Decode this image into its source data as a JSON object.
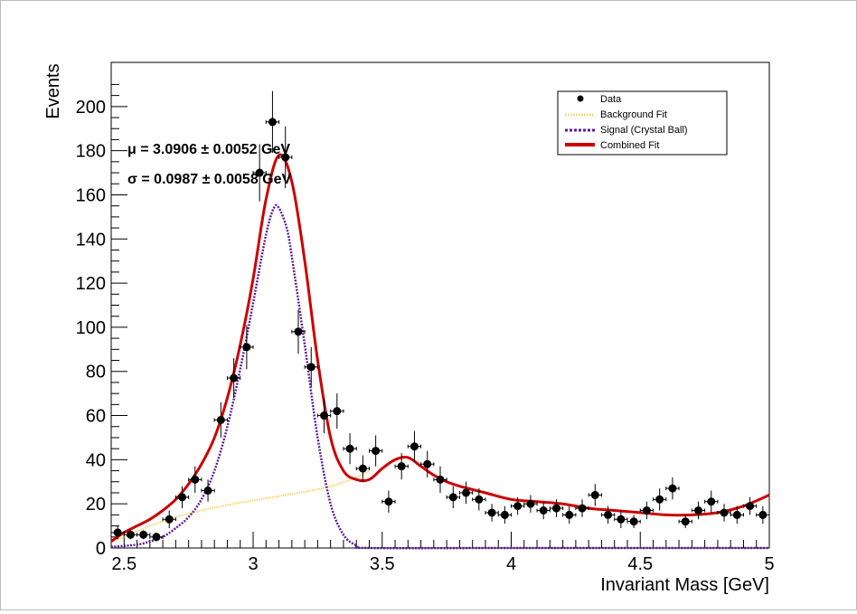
{
  "chart_data": {
    "type": "scatter",
    "xlabel": "Invariant Mass [GeV]",
    "ylabel": "Events",
    "xlim": [
      2.45,
      5.0
    ],
    "ylim": [
      0,
      220
    ],
    "x_ticks": [
      "2.5",
      "3",
      "3.5",
      "4",
      "4.5",
      "5"
    ],
    "y_ticks": [
      "0",
      "20",
      "40",
      "60",
      "80",
      "100",
      "120",
      "140",
      "160",
      "180",
      "200"
    ],
    "annotations": {
      "mu": "μ = 3.0906 ± 0.0052 GeV",
      "sigma": "σ = 0.0987 ± 0.0058 GeV"
    },
    "legend": {
      "placement": "top-right",
      "entries": [
        "Data",
        "Background Fit",
        "Signal (Crystal Ball)",
        "Combined Fit"
      ]
    },
    "colors": {
      "data": "#000000",
      "background": "#f5d76e",
      "signal": "#5b1a9b",
      "combined": "#cc0000"
    },
    "x_error": 0.025,
    "series": [
      {
        "name": "Data",
        "kind": "points",
        "x": [
          2.475,
          2.525,
          2.575,
          2.625,
          2.675,
          2.725,
          2.775,
          2.825,
          2.875,
          2.925,
          2.975,
          3.025,
          3.075,
          3.125,
          3.175,
          3.225,
          3.275,
          3.325,
          3.375,
          3.425,
          3.475,
          3.525,
          3.575,
          3.625,
          3.675,
          3.725,
          3.775,
          3.825,
          3.875,
          3.925,
          3.975,
          4.025,
          4.075,
          4.125,
          4.175,
          4.225,
          4.275,
          4.325,
          4.375,
          4.425,
          4.475,
          4.525,
          4.575,
          4.625,
          4.675,
          4.725,
          4.775,
          4.825,
          4.875,
          4.925,
          4.975
        ],
        "y": [
          7,
          6,
          6,
          5,
          13,
          23,
          31,
          26,
          58,
          77,
          91,
          170,
          193,
          177,
          98,
          82,
          60,
          62,
          45,
          36,
          44,
          21,
          37,
          46,
          38,
          31,
          23,
          25,
          22,
          16,
          15,
          19,
          20,
          17,
          18,
          15,
          18,
          24,
          15,
          13,
          12,
          17,
          22,
          27,
          12,
          17,
          21,
          16,
          15,
          19,
          15
        ],
        "err": [
          3,
          2,
          2,
          2,
          4,
          5,
          6,
          5,
          8,
          9,
          10,
          13,
          14,
          14,
          10,
          9,
          8,
          8,
          7,
          6,
          7,
          5,
          6,
          7,
          6,
          6,
          5,
          5,
          5,
          4,
          4,
          4,
          4,
          4,
          4,
          4,
          4,
          5,
          4,
          4,
          3,
          4,
          5,
          5,
          3,
          4,
          5,
          4,
          4,
          4,
          4
        ]
      },
      {
        "name": "Background Fit",
        "kind": "curve",
        "x": [
          2.45,
          2.5,
          2.6,
          2.7,
          2.8,
          2.9,
          3.0,
          3.1,
          3.2,
          3.3,
          3.4,
          3.45
        ],
        "y": [
          3,
          5,
          10,
          14,
          17,
          19.5,
          21.5,
          23.5,
          25.5,
          28,
          32,
          35
        ]
      },
      {
        "name": "Signal (Crystal Ball)",
        "kind": "curve",
        "x": [
          2.45,
          2.55,
          2.6,
          2.65,
          2.7,
          2.75,
          2.8,
          2.85,
          2.9,
          2.95,
          3.0,
          3.05,
          3.08,
          3.1,
          3.13,
          3.15,
          3.2,
          3.25,
          3.3,
          3.35,
          3.4,
          3.45,
          4.0,
          5.0
        ],
        "y": [
          0.5,
          1.5,
          3,
          5,
          9,
          14,
          22,
          35,
          55,
          81,
          111,
          142,
          154,
          154,
          145,
          132,
          92,
          50,
          20,
          6,
          1.2,
          0,
          0,
          0
        ]
      },
      {
        "name": "Combined Fit",
        "kind": "curve",
        "x": [
          2.45,
          2.5,
          2.55,
          2.6,
          2.65,
          2.7,
          2.75,
          2.8,
          2.85,
          2.9,
          2.95,
          3.0,
          3.05,
          3.1,
          3.15,
          3.2,
          3.25,
          3.3,
          3.35,
          3.4,
          3.45,
          3.5,
          3.55,
          3.6,
          3.65,
          3.7,
          3.75,
          3.8,
          3.9,
          4.0,
          4.1,
          4.2,
          4.3,
          4.4,
          4.5,
          4.6,
          4.7,
          4.8,
          4.9,
          5.0
        ],
        "y": [
          3,
          7,
          10,
          13,
          17,
          22,
          29,
          38,
          50,
          68,
          92,
          122,
          158,
          178,
          166,
          130,
          85,
          50,
          35,
          31,
          31,
          36,
          40,
          41,
          37,
          33,
          30,
          28,
          25,
          22,
          21,
          20,
          18,
          17,
          16,
          15,
          15,
          16,
          19,
          24
        ]
      }
    ]
  }
}
